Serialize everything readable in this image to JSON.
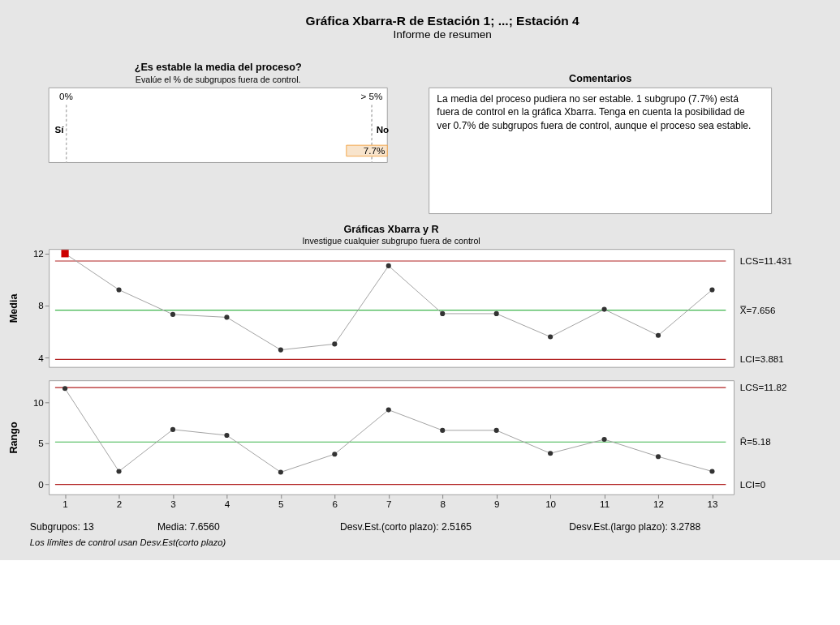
{
  "chart_data": [
    {
      "type": "other",
      "title": "Gráfica Xbarra-R de Estación 1; ...; Estación 4",
      "subtitle": "Informe de resumen"
    },
    {
      "type": "other",
      "title": "¿Es estable la media del proceso?",
      "subtitle": "Evalúe el % de subgrupos fuera de control.",
      "annotations": [
        "0%",
        "> 5%",
        "Sí",
        "No",
        "7.7%"
      ]
    },
    {
      "type": "other",
      "title": "Comentarios",
      "annotations": [
        "La media del proceso pudiera no ser estable. 1 subgrupo (7.7%) está",
        "fuera de control en la gráfica Xbarra. Tenga en cuenta la posibilidad de",
        "ver 0.7% de subgrupos fuera de control, aunque el proceso sea estable."
      ]
    },
    {
      "type": "line",
      "title": "Gráficas Xbarra y R",
      "subtitle": "Investigue cualquier subgrupo fuera de control",
      "ylabel": "Media",
      "tick_labels": "y",
      "grid": false,
      "x": [
        1,
        2,
        3,
        4,
        5,
        6,
        7,
        8,
        9,
        10,
        11,
        12,
        13
      ],
      "xlim": [
        0.7,
        13.4
      ],
      "ylim": [
        3.3,
        12.35
      ],
      "yticks": [
        4,
        8,
        12
      ],
      "series": [
        {
          "type": "line",
          "color": "#a0a0a0",
          "marker": "none",
          "line_style": "solid",
          "values": [
            12.0,
            9.22,
            7.33,
            7.11,
            4.61,
            5.06,
            11.06,
            7.39,
            7.39,
            5.61,
            7.72,
            5.72,
            9.22
          ]
        },
        {
          "type": "scatter",
          "color": "#333333",
          "marker": "circle",
          "x": [
            2,
            3,
            4,
            5,
            6,
            7,
            8,
            9,
            10,
            11,
            12,
            13
          ],
          "values": [
            9.22,
            7.33,
            7.11,
            4.61,
            5.06,
            11.06,
            7.39,
            7.39,
            5.61,
            7.72,
            5.72,
            9.22
          ]
        },
        {
          "type": "scatter",
          "color": "#cc0000",
          "marker": "square",
          "x": [
            1
          ],
          "values": [
            12.0
          ]
        }
      ],
      "ref_lines": [
        {
          "axis": "y",
          "value": 11.431,
          "label": "LCS=11.431",
          "color": "#b22222"
        },
        {
          "axis": "y",
          "value": 7.656,
          "label": "X̿=7.656",
          "color": "#3cb44b"
        },
        {
          "axis": "y",
          "value": 3.881,
          "label": "LCI=3.881",
          "color": "#b22222"
        }
      ]
    },
    {
      "type": "line",
      "ylabel": "Rango",
      "grid": false,
      "x": [
        1,
        2,
        3,
        4,
        5,
        6,
        7,
        8,
        9,
        10,
        11,
        12,
        13
      ],
      "xlim": [
        0.7,
        13.4
      ],
      "xticks": [
        1,
        2,
        3,
        4,
        5,
        6,
        7,
        8,
        9,
        10,
        11,
        12,
        13
      ],
      "ylim": [
        -1.2,
        12.7
      ],
      "yticks": [
        0,
        5,
        10
      ],
      "series": [
        {
          "type": "line",
          "color": "#a0a0a0",
          "marker": "none",
          "line_style": "solid",
          "values": [
            11.7,
            1.6,
            6.7,
            6.0,
            1.5,
            3.7,
            9.1,
            6.6,
            6.6,
            3.8,
            5.5,
            3.4,
            1.6
          ]
        },
        {
          "type": "scatter",
          "color": "#333333",
          "marker": "circle",
          "values": [
            11.7,
            1.6,
            6.7,
            6.0,
            1.5,
            3.7,
            9.1,
            6.6,
            6.6,
            3.8,
            5.5,
            3.4,
            1.6
          ]
        }
      ],
      "ref_lines": [
        {
          "axis": "y",
          "value": 11.82,
          "label": "LCS=11.82",
          "color": "#b22222"
        },
        {
          "axis": "y",
          "value": 5.18,
          "label": "R̄=5.18",
          "color": "#3cb44b"
        },
        {
          "axis": "y",
          "value": 0,
          "label": "LCI=0",
          "color": "#b22222"
        }
      ],
      "annotations": [
        "Subgrupos: 13",
        "Media: 7.6560",
        "Desv.Est.(corto plazo): 2.5165",
        "Desv.Est.(largo plazo): 3.2788",
        "Los límites de control usan Desv.Est(corto plazo)"
      ]
    }
  ]
}
